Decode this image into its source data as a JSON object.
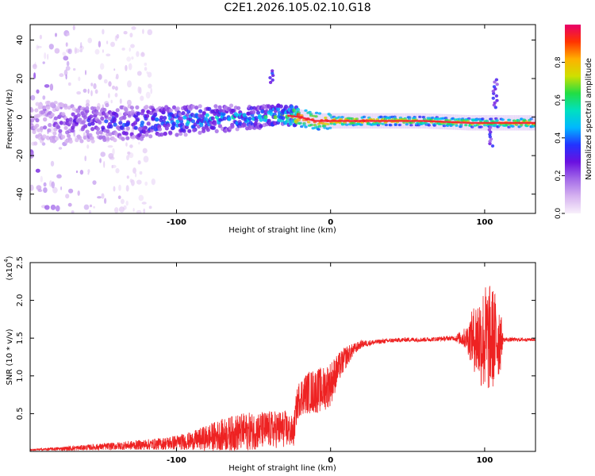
{
  "title": "C2E1.2026.105.02.10.G18",
  "colors": {
    "signal": "#ee2222",
    "background": "#ffffff",
    "axis": "#000000",
    "colormap": [
      "#f8f0fb",
      "#d6b3f0",
      "#a36ae8",
      "#6a10e0",
      "#2233ff",
      "#00b8ff",
      "#00e0c0",
      "#22dd44",
      "#cfe000",
      "#ffb000",
      "#ff3300",
      "#e8006a"
    ]
  },
  "chart_data": [
    {
      "type": "heatmap",
      "name": "spectrogram",
      "xlabel": "Height of straight line (km)",
      "ylabel": "Frequency (Hz)",
      "xlim": [
        -195,
        133
      ],
      "ylim": [
        -50,
        48
      ],
      "x_ticks": [
        -100,
        0,
        100
      ],
      "x_tick_labels": [
        "-100",
        "0",
        "100"
      ],
      "y_ticks": [
        -40,
        -20,
        0,
        20,
        40
      ],
      "y_tick_labels": [
        "-40",
        "-20",
        "0",
        "20",
        "40"
      ],
      "colorbar": {
        "label": "Normalized spectral amplitude",
        "range": [
          0,
          1
        ],
        "ticks": [
          0.0,
          0.2,
          0.4,
          0.6,
          0.8
        ],
        "tick_labels": [
          "0.0",
          "0.2",
          "0.4",
          "0.6",
          "0.8"
        ]
      },
      "ridge": {
        "x": [
          -195,
          -160,
          -120,
          -80,
          -50,
          -30,
          -20,
          -10,
          0,
          20,
          60,
          90,
          105,
          120,
          133
        ],
        "center_hz": [
          -3,
          -3,
          -3,
          -1,
          0,
          1,
          0,
          -2,
          -2,
          -2,
          -2,
          -3,
          -3,
          -3,
          -3
        ],
        "amplitude": [
          0.15,
          0.3,
          0.4,
          0.5,
          0.5,
          0.65,
          0.95,
          0.95,
          0.95,
          0.95,
          0.8,
          0.9,
          0.75,
          0.9,
          0.95
        ]
      },
      "features": [
        {
          "x": -38,
          "y_range": [
            18,
            24
          ],
          "amplitude": 0.35
        },
        {
          "x": 107,
          "y_range": [
            5,
            20
          ],
          "amplitude": 0.3
        },
        {
          "x": 104,
          "y_range": [
            -15,
            -5
          ],
          "amplitude": 0.3
        }
      ]
    },
    {
      "type": "line",
      "name": "snr",
      "xlabel": "Height of straight line (km)",
      "ylabel": "SNR (10 * v/v)",
      "multiplier": "(x10",
      "multiplier_exp": "4",
      "multiplier_close": ")",
      "xlim": [
        -195,
        133
      ],
      "ylim": [
        0,
        2.5
      ],
      "x_ticks": [
        -100,
        0,
        100
      ],
      "x_tick_labels": [
        "-100",
        "0",
        "100"
      ],
      "y_ticks": [
        0.5,
        1.0,
        1.5,
        2.0,
        2.5
      ],
      "y_tick_labels": [
        "0.5",
        "1.0",
        "1.5",
        "2.0",
        "2.5"
      ],
      "envelope": {
        "x": [
          -195,
          -170,
          -140,
          -110,
          -90,
          -75,
          -60,
          -45,
          -30,
          -24,
          -22,
          -20,
          -15,
          -10,
          -5,
          0,
          5,
          10,
          15,
          20,
          30,
          40,
          50,
          60,
          70,
          80,
          88,
          95,
          100,
          105,
          110,
          112,
          133
        ],
        "mean": [
          0.02,
          0.04,
          0.07,
          0.1,
          0.14,
          0.2,
          0.25,
          0.28,
          0.3,
          0.25,
          0.6,
          0.72,
          0.78,
          0.8,
          0.82,
          0.9,
          1.1,
          1.25,
          1.35,
          1.42,
          1.45,
          1.47,
          1.48,
          1.48,
          1.49,
          1.5,
          1.5,
          1.5,
          1.48,
          1.5,
          1.5,
          1.48,
          1.48
        ],
        "spread": [
          0.01,
          0.03,
          0.05,
          0.08,
          0.12,
          0.2,
          0.25,
          0.25,
          0.25,
          0.2,
          0.22,
          0.25,
          0.28,
          0.3,
          0.3,
          0.3,
          0.2,
          0.15,
          0.08,
          0.05,
          0.03,
          0.03,
          0.03,
          0.03,
          0.03,
          0.03,
          0.15,
          0.55,
          0.75,
          0.7,
          0.5,
          0.03,
          0.02
        ]
      }
    }
  ]
}
